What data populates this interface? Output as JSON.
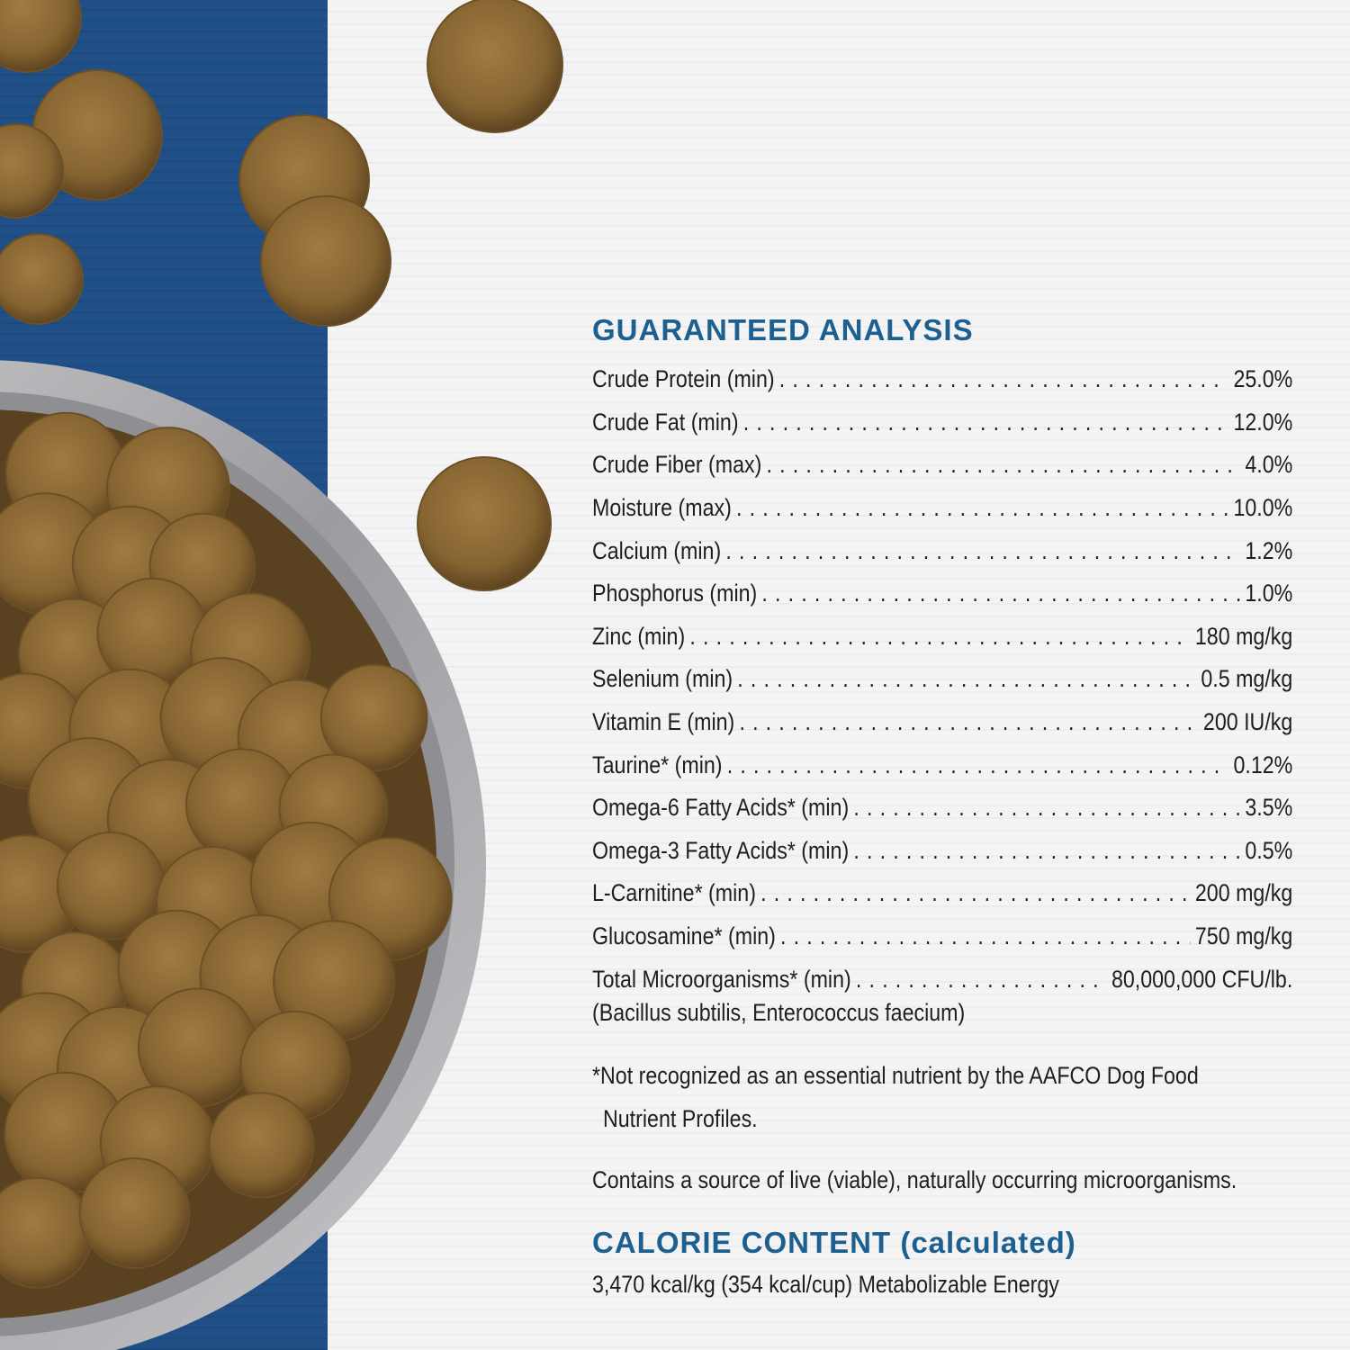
{
  "guaranteed_analysis": {
    "heading": "GUARANTEED ANALYSIS",
    "rows": [
      {
        "label": "Crude Protein (min)",
        "value": "25.0%"
      },
      {
        "label": "Crude Fat (min)",
        "value": "12.0%"
      },
      {
        "label": "Crude Fiber (max)",
        "value": "4.0%"
      },
      {
        "label": "Moisture (max)",
        "value": "10.0%"
      },
      {
        "label": "Calcium (min)",
        "value": "1.2%"
      },
      {
        "label": "Phosphorus (min)",
        "value": "1.0%"
      },
      {
        "label": "Zinc (min)",
        "value": "180 mg/kg"
      },
      {
        "label": "Selenium (min)",
        "value": "0.5 mg/kg"
      },
      {
        "label": "Vitamin E (min)",
        "value": "200 IU/kg"
      },
      {
        "label": "Taurine* (min)",
        "value": "0.12%"
      },
      {
        "label": "Omega-6 Fatty Acids* (min)",
        "value": "3.5%"
      },
      {
        "label": "Omega-3 Fatty Acids* (min)",
        "value": "0.5%"
      },
      {
        "label": "L-Carnitine* (min)",
        "value": "200 mg/kg"
      },
      {
        "label": "Glucosamine* (min)",
        "value": "750 mg/kg"
      },
      {
        "label": "Total Microorganisms* (min)",
        "value": "80,000,000 CFU/lb."
      }
    ],
    "organisms_note": "(Bacillus subtilis, Enterococcus faecium)",
    "footnote_line1": "*Not recognized as an essential nutrient by the AAFCO Dog Food",
    "footnote_line2": "Nutrient Profiles.",
    "live_note": "Contains a source of live (viable), naturally occurring microorganisms."
  },
  "calorie_content": {
    "heading": "CALORIE CONTENT (calculated)",
    "value": "3,470 kcal/kg (354 kcal/cup)  Metabolizable Energy"
  },
  "colors": {
    "heading_blue": "#1d5f8f",
    "wood_blue": "#1f4f86",
    "board_white": "#f3f3f4",
    "kibble_brown": "#8a6a34"
  }
}
